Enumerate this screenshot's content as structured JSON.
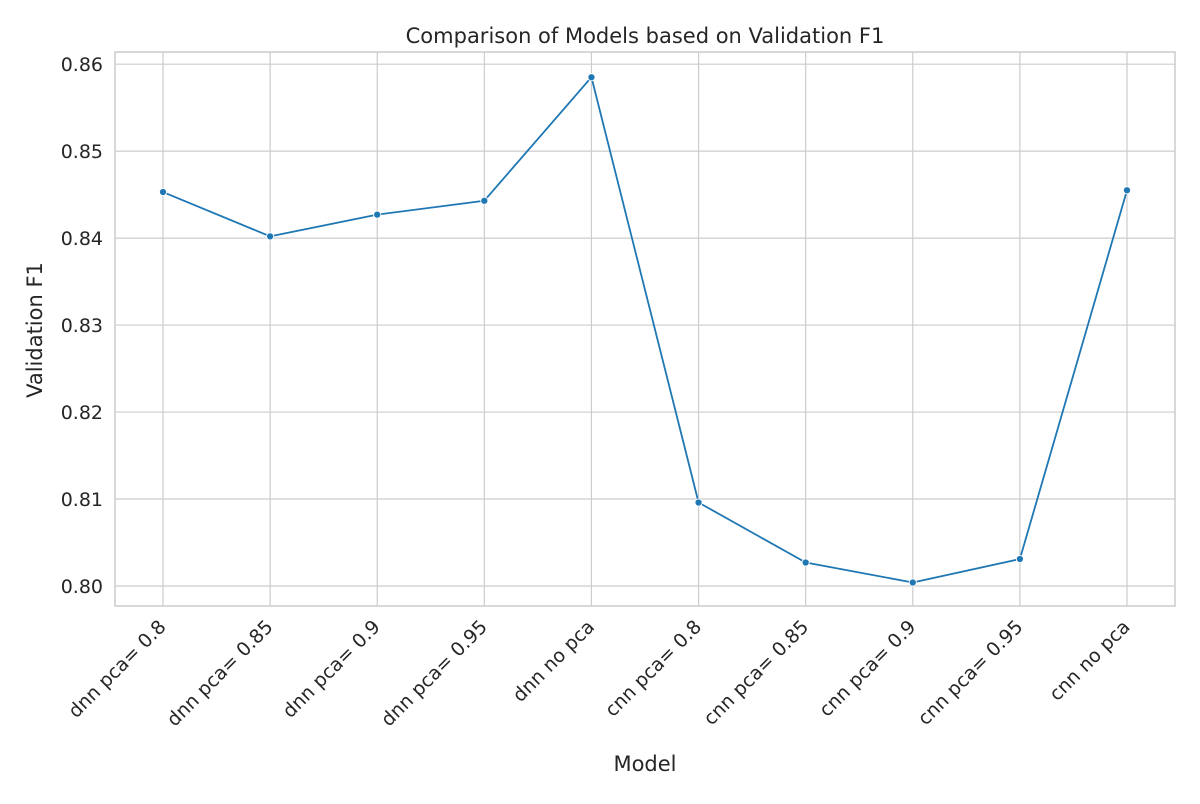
{
  "chart_data": {
    "type": "line",
    "title": "Comparison of Models based on Validation F1",
    "xlabel": "Model",
    "ylabel": "Validation F1",
    "categories": [
      "dnn pca= 0.8",
      "dnn pca= 0.85",
      "dnn pca= 0.9",
      "dnn pca= 0.95",
      "dnn no pca",
      "cnn pca= 0.8",
      "cnn pca= 0.85",
      "cnn pca= 0.9",
      "cnn pca= 0.95",
      "cnn no pca"
    ],
    "series": [
      {
        "values": [
          0.8453,
          0.8402,
          0.8427,
          0.8443,
          0.8585,
          0.8096,
          0.8027,
          0.8004,
          0.8031,
          0.8455
        ],
        "color": "#1f77b4"
      }
    ],
    "yticks": [
      "0.80",
      "0.81",
      "0.82",
      "0.83",
      "0.84",
      "0.85",
      "0.86"
    ],
    "ytick_values": [
      0.8,
      0.81,
      0.82,
      0.83,
      0.84,
      0.85,
      0.86
    ],
    "ylim": [
      0.7977,
      0.8614
    ],
    "grid": true,
    "legend": "none",
    "colors": {
      "grid": "#cccccc",
      "axes_edge": "#cccccc",
      "text": "#262626"
    }
  }
}
